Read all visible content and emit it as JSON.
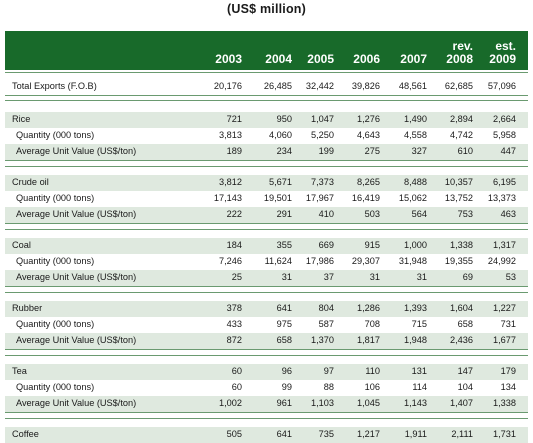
{
  "title": "(US$ million)",
  "header": {
    "years": [
      {
        "top": "",
        "bottom": "2003"
      },
      {
        "top": "",
        "bottom": "2004"
      },
      {
        "top": "",
        "bottom": "2005"
      },
      {
        "top": "",
        "bottom": "2006"
      },
      {
        "top": "",
        "bottom": "2007"
      },
      {
        "top": "rev.",
        "bottom": "2008"
      },
      {
        "top": "est.",
        "bottom": "2009"
      }
    ]
  },
  "rows": [
    {
      "label": "Total Exports (F.O.B)",
      "level": 0,
      "band": false,
      "values": [
        "20,176",
        "26,485",
        "32,442",
        "39,826",
        "48,561",
        "62,685",
        "57,096"
      ]
    },
    {
      "label": "Rice",
      "level": 0,
      "band": true,
      "values": [
        "721",
        "950",
        "1,047",
        "1,276",
        "1,490",
        "2,894",
        "2,664"
      ]
    },
    {
      "label": "Quantity (000 tons)",
      "level": 1,
      "band": false,
      "values": [
        "3,813",
        "4,060",
        "5,250",
        "4,643",
        "4,558",
        "4,742",
        "5,958"
      ]
    },
    {
      "label": "Average Unit Value (US$/ton)",
      "level": 1,
      "band": true,
      "values": [
        "189",
        "234",
        "199",
        "275",
        "327",
        "610",
        "447"
      ]
    },
    {
      "label": "Crude oil",
      "level": 0,
      "band": true,
      "values": [
        "3,812",
        "5,671",
        "7,373",
        "8,265",
        "8,488",
        "10,357",
        "6,195"
      ]
    },
    {
      "label": "Quantity (000 tons)",
      "level": 1,
      "band": false,
      "values": [
        "17,143",
        "19,501",
        "17,967",
        "16,419",
        "15,062",
        "13,752",
        "13,373"
      ]
    },
    {
      "label": "Average Unit Value (US$/ton)",
      "level": 1,
      "band": true,
      "values": [
        "222",
        "291",
        "410",
        "503",
        "564",
        "753",
        "463"
      ]
    },
    {
      "label": "Coal",
      "level": 0,
      "band": true,
      "values": [
        "184",
        "355",
        "669",
        "915",
        "1,000",
        "1,338",
        "1,317"
      ]
    },
    {
      "label": "Quantity (000 tons)",
      "level": 1,
      "band": false,
      "values": [
        "7,246",
        "11,624",
        "17,986",
        "29,307",
        "31,948",
        "19,355",
        "24,992"
      ]
    },
    {
      "label": "Average Unit Value (US$/ton)",
      "level": 1,
      "band": true,
      "values": [
        "25",
        "31",
        "37",
        "31",
        "31",
        "69",
        "53"
      ]
    },
    {
      "label": "Rubber",
      "level": 0,
      "band": true,
      "values": [
        "378",
        "641",
        "804",
        "1,286",
        "1,393",
        "1,604",
        "1,227"
      ]
    },
    {
      "label": "Quantity (000 tons)",
      "level": 1,
      "band": false,
      "values": [
        "433",
        "975",
        "587",
        "708",
        "715",
        "658",
        "731"
      ]
    },
    {
      "label": "Average Unit Value (US$/ton)",
      "level": 1,
      "band": true,
      "values": [
        "872",
        "658",
        "1,370",
        "1,817",
        "1,948",
        "2,436",
        "1,677"
      ]
    },
    {
      "label": "Tea",
      "level": 0,
      "band": true,
      "values": [
        "60",
        "96",
        "97",
        "110",
        "131",
        "147",
        "179"
      ]
    },
    {
      "label": "Quantity (000 tons)",
      "level": 1,
      "band": false,
      "values": [
        "60",
        "99",
        "88",
        "106",
        "114",
        "104",
        "134"
      ]
    },
    {
      "label": "Average Unit Value (US$/ton)",
      "level": 1,
      "band": true,
      "values": [
        "1,002",
        "961",
        "1,103",
        "1,045",
        "1,143",
        "1,407",
        "1,338"
      ]
    },
    {
      "label": "Coffee",
      "level": 0,
      "band": true,
      "values": [
        "505",
        "641",
        "735",
        "1,217",
        "1,911",
        "2,111",
        "1,731"
      ]
    }
  ],
  "colors": {
    "header_bg": "#186a2a",
    "band_bg": "#dfe9df",
    "rule": "#6a9a70"
  }
}
